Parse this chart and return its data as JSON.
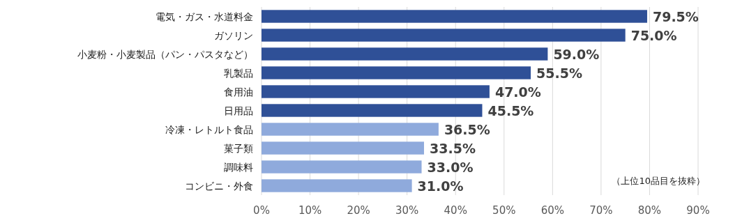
{
  "chart_data": {
    "type": "bar",
    "orientation": "horizontal",
    "categories": [
      "電気・ガス・水道料金",
      "ガソリン",
      "小麦粉・小麦製品（パン・パスタなど）",
      "乳製品",
      "食用油",
      "日用品",
      "冷凍・レトルト食品",
      "菓子類",
      "調味料",
      "コンビニ・外食"
    ],
    "values": [
      79.5,
      75.0,
      59.0,
      55.5,
      47.0,
      45.5,
      36.5,
      33.5,
      33.0,
      31.0
    ],
    "colors": [
      "#2f5097",
      "#2f5097",
      "#2f5097",
      "#2f5097",
      "#2f5097",
      "#2f5097",
      "#8faadc",
      "#8faadc",
      "#8faadc",
      "#8faadc"
    ],
    "value_labels": [
      "79.5%",
      "75.0%",
      "59.0%",
      "55.5%",
      "47.0%",
      "45.5%",
      "36.5%",
      "33.5%",
      "33.0%",
      "31.0%"
    ],
    "xlim": [
      0,
      90
    ],
    "xticks": [
      {
        "value": 0,
        "label": "0%"
      },
      {
        "value": 10,
        "label": "10%"
      },
      {
        "value": 20,
        "label": "20%"
      },
      {
        "value": 30,
        "label": "30%"
      },
      {
        "value": 40,
        "label": "40%"
      },
      {
        "value": 50,
        "label": "50%"
      },
      {
        "value": 60,
        "label": "60%"
      },
      {
        "value": 70,
        "label": "70%"
      },
      {
        "value": 80,
        "label": "80%"
      },
      {
        "value": 90,
        "label": "90%"
      }
    ],
    "grid": "x",
    "annotations": [
      "（上位10品目を抜粋）"
    ]
  }
}
